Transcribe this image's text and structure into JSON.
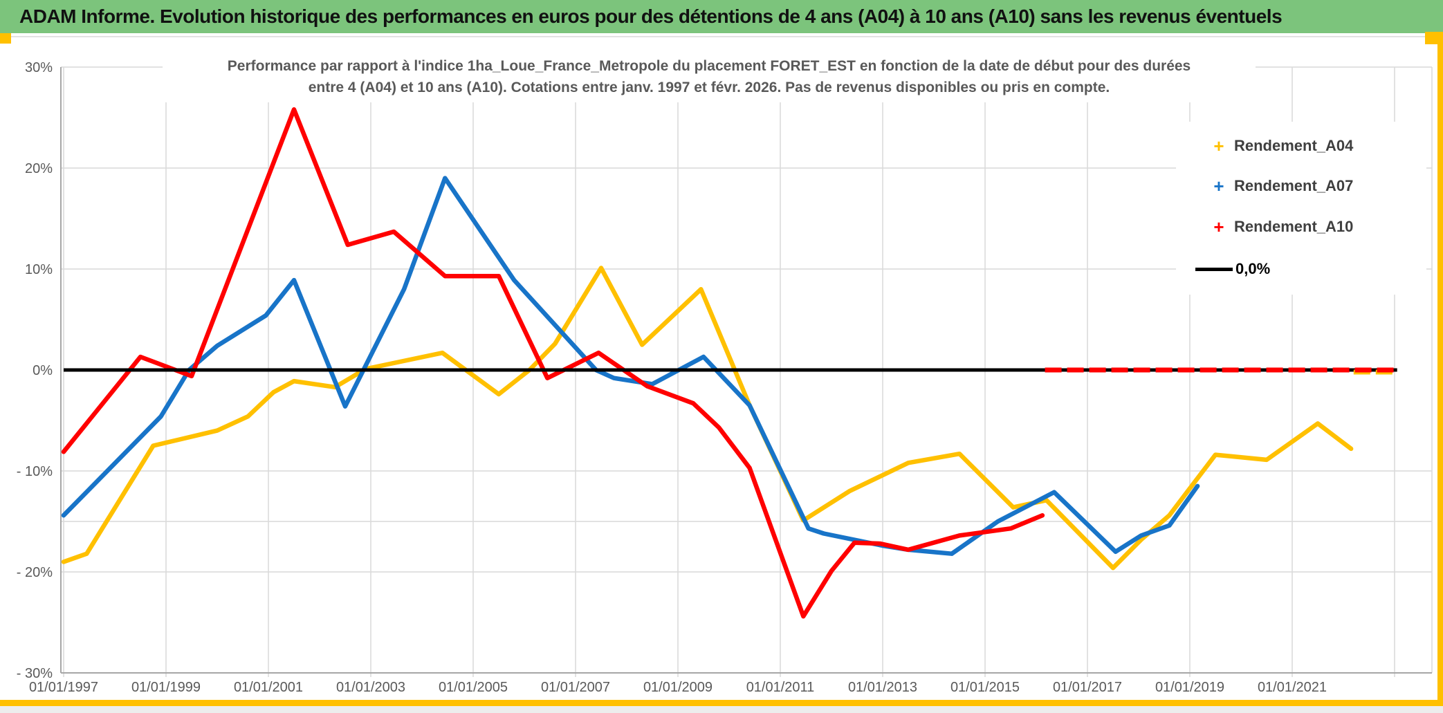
{
  "page": {
    "title": "ADAM Informe. Evolution historique des performances en euros pour des détentions de 4 ans (A04) à 10 ans (A10) sans les revenus éventuels"
  },
  "colors": {
    "header_bg": "#7CC47C",
    "gold_border": "#FFC000",
    "series_a04": "#FFC000",
    "series_a07": "#1874C8",
    "series_a10": "#FF0000",
    "zero_line": "#000000",
    "grid": "#D9D9D9",
    "axis": "#A6A6A6",
    "axis_text": "#595959"
  },
  "chart_data": {
    "type": "line",
    "title_line1": "Performance par rapport à l'indice 1ha_Loue_France_Metropole  du placement FORET_EST en fonction de la date de début pour des durées",
    "title_line2": "entre 4 (A04) et 10 ans (A10). Cotations entre janv. 1997 et févr. 2026. Pas de revenus disponibles ou pris en compte.",
    "x_axis_tick_labels": [
      "01/01/1997",
      "01/01/1999",
      "01/01/2001",
      "01/01/2003",
      "01/01/2005",
      "01/01/2007",
      "01/01/2009",
      "01/01/2011",
      "01/01/2013",
      "01/01/2015",
      "01/01/2017",
      "01/01/2019",
      "01/01/2021"
    ],
    "x_label_years": [
      1997,
      1999,
      2001,
      2003,
      2005,
      2007,
      2009,
      2011,
      2013,
      2015,
      2017,
      2019,
      2021
    ],
    "x_gridline_years": [
      1997,
      1999,
      2001,
      2003,
      2005,
      2007,
      2009,
      2011,
      2013,
      2015,
      2017,
      2019,
      2021,
      2023
    ],
    "y_ticks": [
      {
        "value": 30,
        "label": "30%"
      },
      {
        "value": 20,
        "label": "20%"
      },
      {
        "value": 10,
        "label": "10%"
      },
      {
        "value": 0,
        "label": "0%"
      },
      {
        "value": -10,
        "label": "- 10%"
      },
      {
        "value": -20,
        "label": "- 20%"
      },
      {
        "value": -30,
        "label": "- 30%"
      }
    ],
    "y_gridline_values": [
      20,
      10,
      -10,
      -15,
      -20
    ],
    "x_range_years": [
      1997.0,
      2023.7
    ],
    "ylim_pct": [
      -30,
      30
    ],
    "grid": true,
    "legend_position": "inside-top-right",
    "series": [
      {
        "name": "Rendement_A04",
        "color": "#FFC000",
        "points": [
          [
            1997.0,
            -19.0
          ],
          [
            1997.45,
            -18.2
          ],
          [
            1998.75,
            -7.5
          ],
          [
            2000.0,
            -6.0
          ],
          [
            2000.6,
            -4.6
          ],
          [
            2001.1,
            -2.2
          ],
          [
            2001.5,
            -1.1
          ],
          [
            2002.3,
            -1.7
          ],
          [
            2002.9,
            0.1
          ],
          [
            2004.4,
            1.7
          ],
          [
            2005.5,
            -2.4
          ],
          [
            2006.1,
            0.0
          ],
          [
            2006.6,
            2.6
          ],
          [
            2007.5,
            10.1
          ],
          [
            2008.3,
            2.5
          ],
          [
            2009.45,
            8.0
          ],
          [
            2010.4,
            -3.5
          ],
          [
            2011.45,
            -14.9
          ],
          [
            2012.35,
            -12.0
          ],
          [
            2013.5,
            -9.2
          ],
          [
            2014.5,
            -8.3
          ],
          [
            2015.55,
            -13.6
          ],
          [
            2016.2,
            -12.9
          ],
          [
            2017.5,
            -19.6
          ],
          [
            2018.05,
            -16.8
          ],
          [
            2018.6,
            -14.4
          ],
          [
            2019.5,
            -8.4
          ],
          [
            2020.5,
            -8.9
          ],
          [
            2021.5,
            -5.3
          ],
          [
            2022.15,
            -7.8
          ]
        ]
      },
      {
        "name": "Rendement_A07",
        "color": "#1874C8",
        "points": [
          [
            1997.0,
            -14.4
          ],
          [
            1998.9,
            -4.6
          ],
          [
            1999.45,
            0.0
          ],
          [
            2000.0,
            2.4
          ],
          [
            2000.95,
            5.4
          ],
          [
            2001.5,
            8.9
          ],
          [
            2002.5,
            -3.6
          ],
          [
            2003.65,
            8.0
          ],
          [
            2004.45,
            19.0
          ],
          [
            2005.8,
            8.9
          ],
          [
            2007.4,
            0.0
          ],
          [
            2007.75,
            -0.8
          ],
          [
            2008.5,
            -1.4
          ],
          [
            2009.5,
            1.3
          ],
          [
            2010.4,
            -3.5
          ],
          [
            2011.55,
            -15.7
          ],
          [
            2011.85,
            -16.2
          ],
          [
            2013.0,
            -17.4
          ],
          [
            2013.5,
            -17.8
          ],
          [
            2014.35,
            -18.2
          ],
          [
            2015.25,
            -15.0
          ],
          [
            2016.35,
            -12.1
          ],
          [
            2017.55,
            -18.0
          ],
          [
            2018.05,
            -16.4
          ],
          [
            2018.6,
            -15.4
          ],
          [
            2019.15,
            -11.5
          ]
        ]
      },
      {
        "name": "Rendement_A10",
        "color": "#FF0000",
        "points": [
          [
            1997.0,
            -8.1
          ],
          [
            1998.5,
            1.3
          ],
          [
            1999.5,
            -0.6
          ],
          [
            2001.5,
            25.8
          ],
          [
            2002.55,
            12.4
          ],
          [
            2003.45,
            13.7
          ],
          [
            2004.45,
            9.3
          ],
          [
            2005.5,
            9.3
          ],
          [
            2006.45,
            -0.8
          ],
          [
            2007.45,
            1.7
          ],
          [
            2008.4,
            -1.6
          ],
          [
            2009.3,
            -3.3
          ],
          [
            2009.8,
            -5.7
          ],
          [
            2010.4,
            -9.7
          ],
          [
            2011.45,
            -24.4
          ],
          [
            2012.0,
            -19.9
          ],
          [
            2012.45,
            -17.1
          ],
          [
            2012.95,
            -17.2
          ],
          [
            2013.5,
            -17.8
          ],
          [
            2014.5,
            -16.4
          ],
          [
            2015.5,
            -15.7
          ],
          [
            2016.12,
            -14.4
          ]
        ]
      },
      {
        "name": "0,0%",
        "color": "#000000",
        "points": [
          [
            1997.0,
            0.0
          ],
          [
            2023.05,
            0.0
          ]
        ]
      }
    ],
    "placeholder_zero_segments": [
      {
        "series": "Rendement_A04",
        "color": "#FFC000",
        "start_year": 2022.2,
        "end_year": 2023.05,
        "value": 0.0
      },
      {
        "series": "Rendement_A10",
        "color": "#FF0000",
        "start_year": 2016.17,
        "end_year": 2023.05,
        "value": 0.0
      }
    ],
    "legend": [
      {
        "label": "Rendement_A04",
        "marker": "+",
        "color": "#FFC000"
      },
      {
        "label": "Rendement_A07",
        "marker": "+",
        "color": "#1874C8"
      },
      {
        "label": "Rendement_A10",
        "marker": "+",
        "color": "#FF0000"
      },
      {
        "label": "0,0%",
        "marker": "line",
        "color": "#000000"
      }
    ]
  }
}
